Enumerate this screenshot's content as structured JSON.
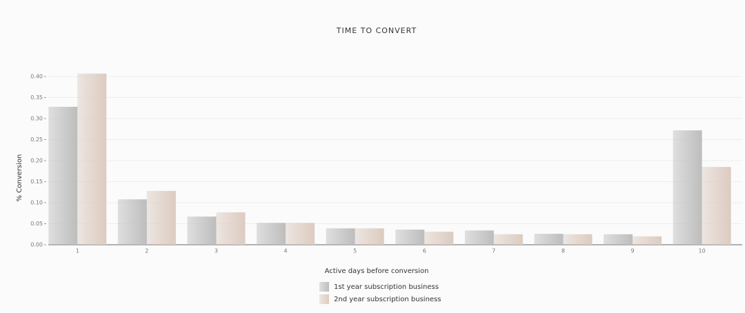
{
  "chart_data": {
    "type": "bar",
    "title": "TIME TO CONVERT",
    "x_label": "Active days before conversion",
    "y_label": "% Conversion",
    "categories": [
      "1",
      "2",
      "3",
      "4",
      "5",
      "6",
      "7",
      "8",
      "9",
      "10"
    ],
    "series": [
      {
        "name": "1st year subscription business",
        "color": "#bdbdbd",
        "values": [
          0.328,
          0.108,
          0.067,
          0.052,
          0.039,
          0.036,
          0.034,
          0.026,
          0.025,
          0.272
        ]
      },
      {
        "name": "2nd year subscription business",
        "color": "#dccbc0",
        "values": [
          0.407,
          0.128,
          0.077,
          0.052,
          0.039,
          0.031,
          0.025,
          0.025,
          0.02,
          0.185
        ]
      }
    ],
    "ylim": [
      0,
      0.4
    ],
    "yticks": [
      {
        "value": 0,
        "label": "0.00"
      },
      0.05,
      {
        "value": 0.1,
        "label": "0.10"
      },
      0.15,
      {
        "value": 0.2,
        "label": "0.20"
      },
      0.25,
      {
        "value": 0.3,
        "label": "0.30"
      },
      0.35,
      {
        "value": 0.4,
        "label": "0.40"
      }
    ],
    "grid": true
  }
}
